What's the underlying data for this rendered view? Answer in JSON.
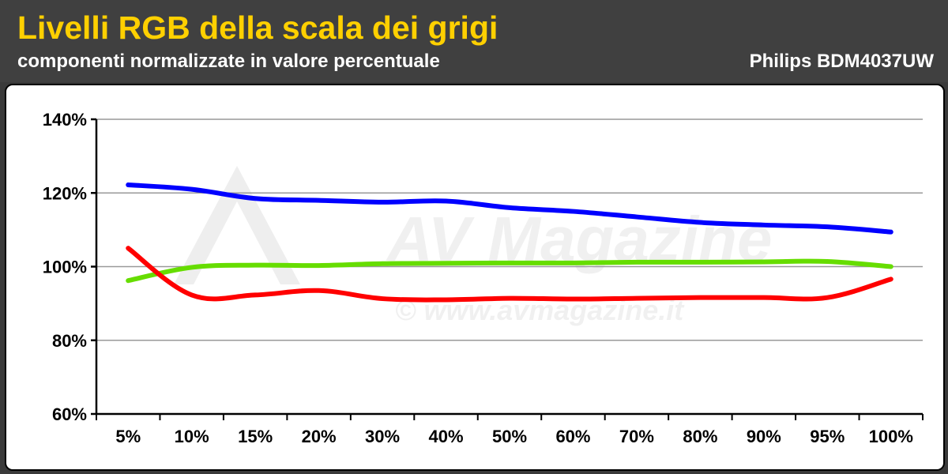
{
  "header": {
    "title": "Livelli RGB della scala dei grigi",
    "subtitle": "componenti normalizzate in valore percentuale",
    "model": "Philips BDM4037UW"
  },
  "watermark": {
    "logo": "AV Magazine",
    "url": "© www.avmagazine.it"
  },
  "chart_data": {
    "type": "line",
    "title": "Livelli RGB della scala dei grigi",
    "subtitle": "componenti normalizzate in valore percentuale",
    "categories": [
      "5%",
      "10%",
      "15%",
      "20%",
      "30%",
      "40%",
      "50%",
      "60%",
      "70%",
      "80%",
      "90%",
      "95%",
      "100%"
    ],
    "ylim": [
      60,
      140
    ],
    "yticks": [
      60,
      80,
      100,
      120,
      140
    ],
    "ytick_labels": [
      "60%",
      "80%",
      "100%",
      "120%",
      "140%"
    ],
    "grid": true,
    "series": [
      {
        "color": "#0000ff",
        "values": [
          122.2,
          121.0,
          118.5,
          118.0,
          117.5,
          117.8,
          116.0,
          115.0,
          113.5,
          112.0,
          111.3,
          110.8,
          109.4
        ]
      },
      {
        "color": "#66dd00",
        "values": [
          96.2,
          99.8,
          100.4,
          100.3,
          100.8,
          100.9,
          101.0,
          101.0,
          101.2,
          101.2,
          101.3,
          101.4,
          100.0
        ]
      },
      {
        "color": "#ff0000",
        "values": [
          105.0,
          92.3,
          92.3,
          93.5,
          91.3,
          91.0,
          91.4,
          91.2,
          91.4,
          91.6,
          91.6,
          91.6,
          96.6
        ]
      }
    ]
  }
}
